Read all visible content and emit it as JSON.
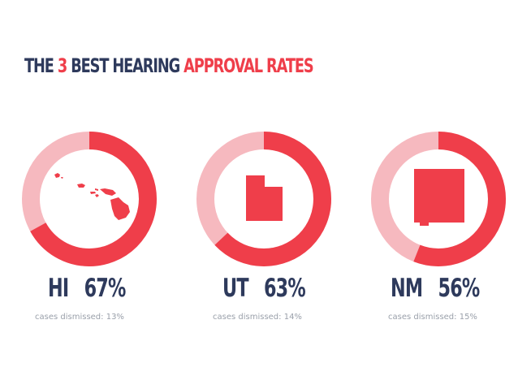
{
  "title": {
    "part1": "THE",
    "part2": "3",
    "part3": "BEST HEARING",
    "part4": "APPROVAL RATES"
  },
  "colors": {
    "accent": "#ef3e4a",
    "track": "#f6b9bf",
    "text_dark": "#2e3a5c",
    "muted": "#9aa0aa"
  },
  "chart_data": {
    "type": "pie",
    "charts": [
      {
        "state": "HI",
        "state_icon": "hawaii-map-icon",
        "approval_rate_label": "67%",
        "approval_rate": 67,
        "note": "cases dismissed: 13%",
        "dismissed_rate": 13
      },
      {
        "state": "UT",
        "state_icon": "utah-map-icon",
        "approval_rate_label": "63%",
        "approval_rate": 63,
        "note": "cases dismissed: 14%",
        "dismissed_rate": 14
      },
      {
        "state": "NM",
        "state_icon": "new-mexico-map-icon",
        "approval_rate_label": "56%",
        "approval_rate": 56,
        "note": "cases dismissed: 15%",
        "dismissed_rate": 15
      }
    ]
  }
}
